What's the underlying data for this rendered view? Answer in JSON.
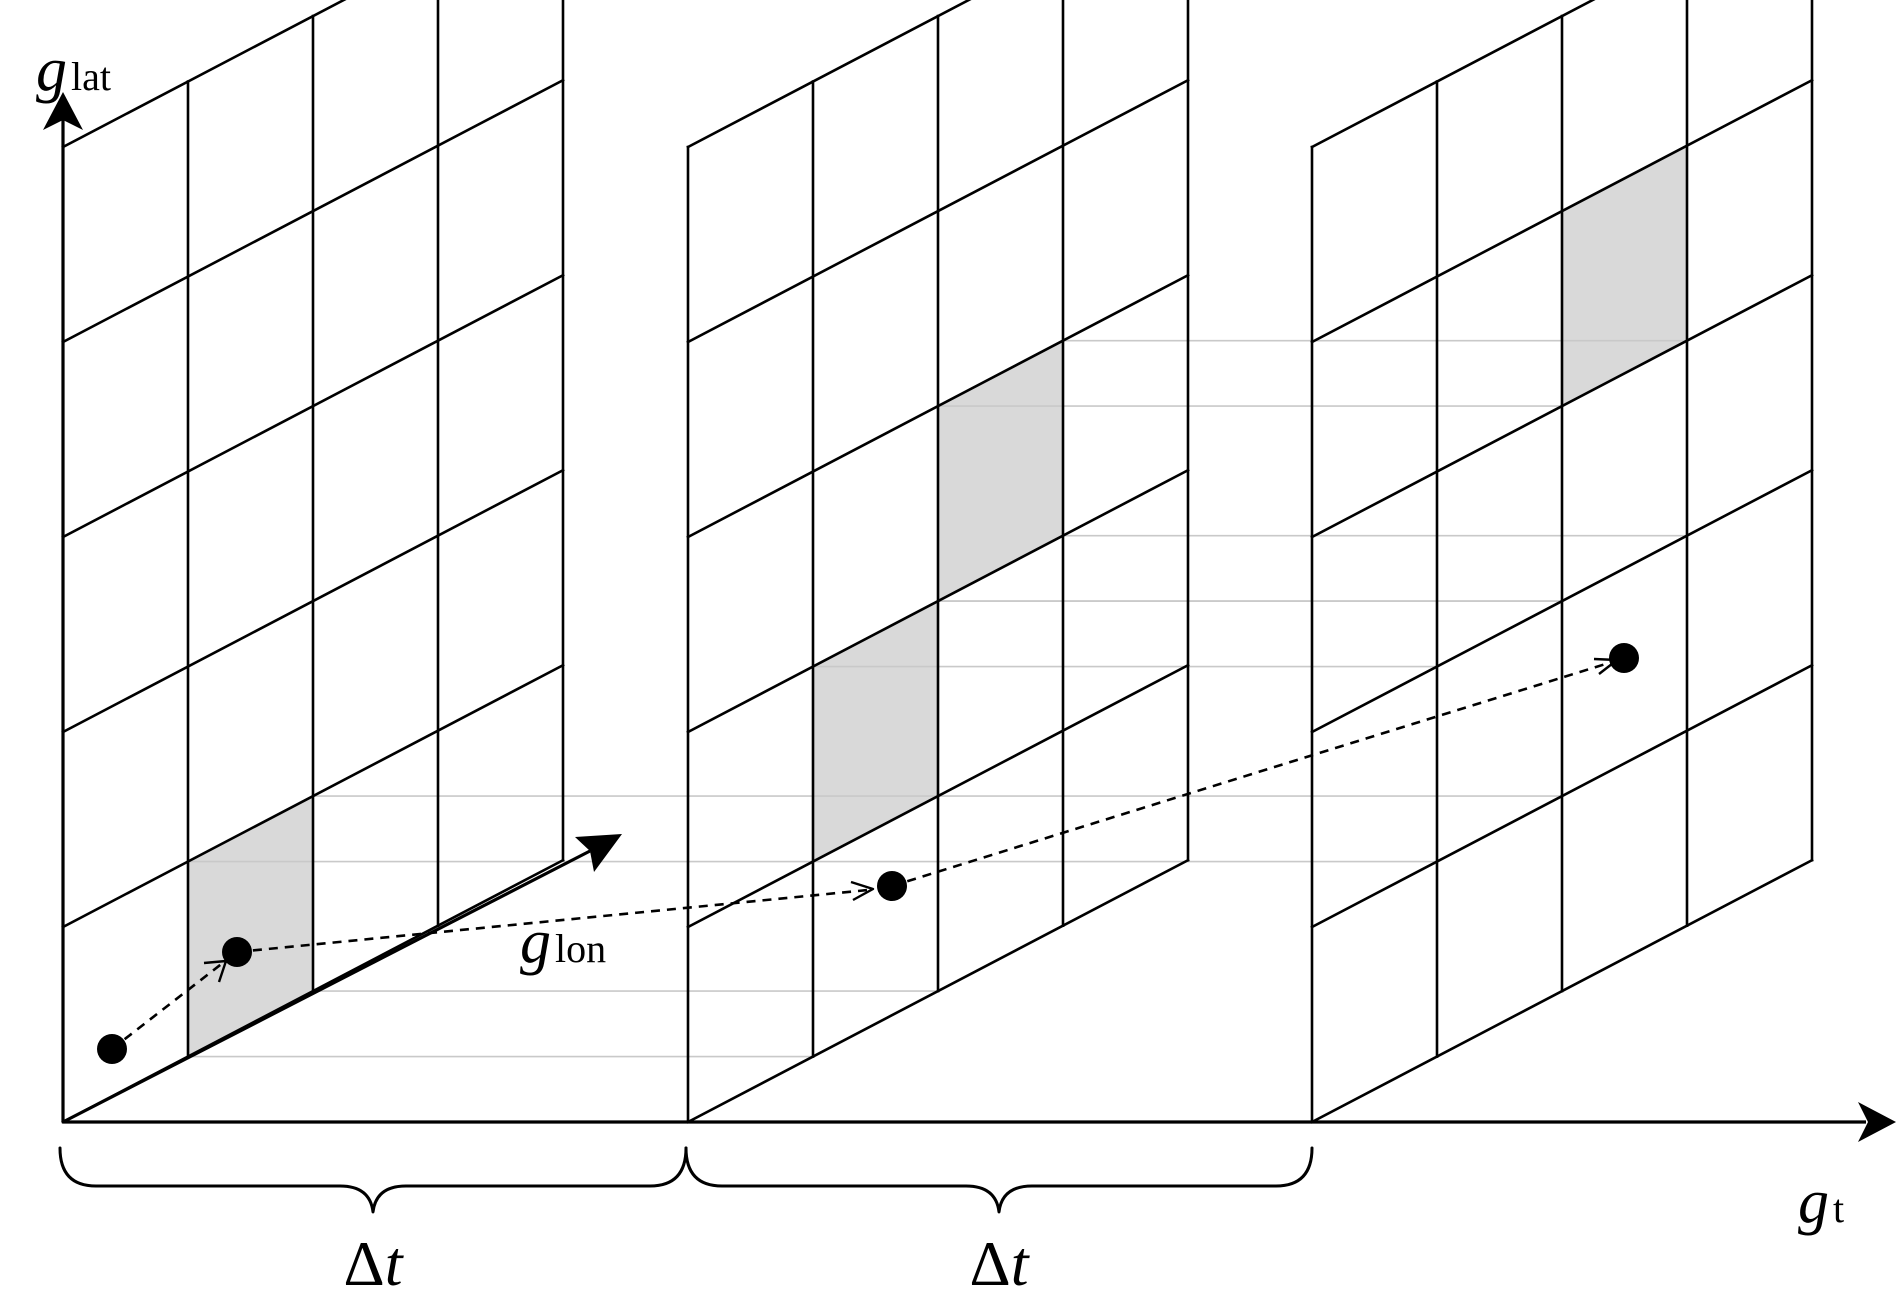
{
  "axes": {
    "lat": {
      "symbol": "g",
      "subscript": "lat"
    },
    "lon": {
      "symbol": "g",
      "subscript": "lon"
    },
    "time": {
      "symbol": "g",
      "subscript": "t"
    }
  },
  "intervals": [
    {
      "delta": "Δ",
      "var": "t"
    },
    {
      "delta": "Δ",
      "var": "t"
    }
  ],
  "grid": {
    "slices": 3,
    "columns": 4,
    "rows": 5,
    "highlighted_cells": [
      {
        "slice": 1,
        "column": 2,
        "row": 5
      },
      {
        "slice": 2,
        "column": 2,
        "row": 4
      },
      {
        "slice": 2,
        "column": 3,
        "row": 3
      },
      {
        "slice": 3,
        "column": 3,
        "row": 2
      }
    ]
  },
  "colors": {
    "line": "#000000",
    "highlight": "#d9d9d9",
    "guide": "#c9c9c9",
    "background": "#ffffff"
  }
}
